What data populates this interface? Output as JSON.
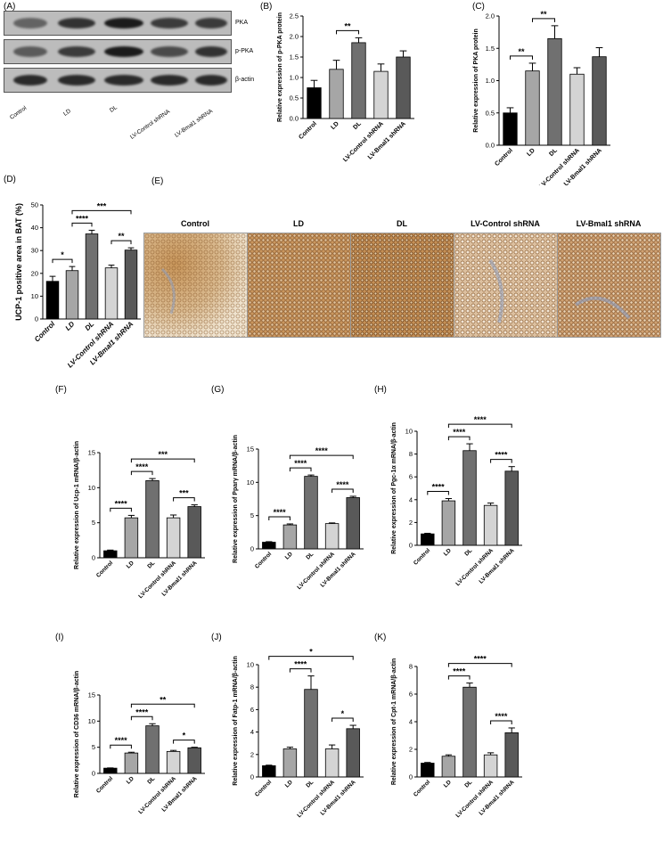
{
  "panel_labels": {
    "A": "(A)",
    "B": "(B)",
    "C": "(C)",
    "D": "(D)",
    "E": "(E)",
    "F": "(F)",
    "G": "(G)",
    "H": "(H)",
    "I": "(I)",
    "J": "(J)",
    "K": "(K)"
  },
  "blot": {
    "rows": [
      "PKA",
      "p-PKA",
      "β-actin"
    ],
    "lanes": [
      "Control",
      "LD",
      "DL",
      "LV-Control shRNA",
      "LV-Bmal1 shRNA"
    ]
  },
  "ihc": {
    "titles": [
      "Control",
      "LD",
      "DL",
      "LV-Control shRNA",
      "LV-Bmal1 shRNA"
    ]
  },
  "colors": {
    "Control": "#000000",
    "LD": "#a6a6a6",
    "DL": "#707070",
    "LV-Control shRNA": "#d4d4d4",
    "LV-Bmal1 shRNA": "#595959",
    "tissue": "#b5834a",
    "stain_blue": "#8aa0c8"
  },
  "chart_data": [
    {
      "id": "B",
      "type": "bar",
      "categories": [
        "Control",
        "LD",
        "DL",
        "LV-Control shRNA",
        "LV-Bmal1 shRNA"
      ],
      "values": [
        0.75,
        1.2,
        1.85,
        1.15,
        1.5
      ],
      "errors": [
        0.18,
        0.22,
        0.12,
        0.18,
        0.15
      ],
      "ylabel": "Relative expression of p-PKA protein",
      "ylim": [
        0,
        2.5
      ],
      "yticks": [
        "0.0",
        "0.5",
        "1.0",
        "1.5",
        "2.0",
        "2.5"
      ],
      "sig": [
        {
          "from": 1,
          "to": 2,
          "label": "**"
        }
      ]
    },
    {
      "id": "C",
      "type": "bar",
      "categories": [
        "Control",
        "LD",
        "DL",
        "LV-Control shRNA",
        "LV-Bmal1 shRNA"
      ],
      "values": [
        0.5,
        1.15,
        1.65,
        1.1,
        1.37
      ],
      "errors": [
        0.08,
        0.12,
        0.2,
        0.1,
        0.14
      ],
      "ylabel": "Relative expression of PKA protein",
      "ylim": [
        0,
        2.0
      ],
      "yticks": [
        "0.0",
        "0.5",
        "1.0",
        "1.5",
        "2.0"
      ],
      "sig": [
        {
          "from": 0,
          "to": 1,
          "label": "**"
        },
        {
          "from": 1,
          "to": 2,
          "label": "**"
        }
      ]
    },
    {
      "id": "D",
      "type": "bar",
      "categories": [
        "Control",
        "LD",
        "DL",
        "LV-Control shRNA",
        "LV-Bmal1 shRNA"
      ],
      "values": [
        16.5,
        21.2,
        37.3,
        22.4,
        30.2
      ],
      "errors": [
        2.2,
        1.8,
        1.6,
        1.2,
        1.0
      ],
      "ylabel": "UCP-1 positive area in BAT (%)",
      "ylim": [
        0,
        50
      ],
      "yticks": [
        "0",
        "10",
        "20",
        "30",
        "40",
        "50"
      ],
      "sig": [
        {
          "from": 0,
          "to": 1,
          "label": "*"
        },
        {
          "from": 1,
          "to": 2,
          "label": "****"
        },
        {
          "from": 1,
          "to": 4,
          "label": "***"
        },
        {
          "from": 3,
          "to": 4,
          "label": "**"
        }
      ]
    },
    {
      "id": "F",
      "type": "bar",
      "categories": [
        "Control",
        "LD",
        "DL",
        "LV-Control shRNA",
        "LV-Bmal1 shRNA"
      ],
      "values": [
        1.0,
        5.7,
        11.0,
        5.7,
        7.3
      ],
      "errors": [
        0.1,
        0.35,
        0.3,
        0.4,
        0.25
      ],
      "ylabel": "Relative expression of Ucp-1 mRNA/β-actin",
      "ylim": [
        0,
        15
      ],
      "yticks": [
        "0",
        "5",
        "10",
        "15"
      ],
      "sig": [
        {
          "from": 0,
          "to": 1,
          "label": "****"
        },
        {
          "from": 1,
          "to": 2,
          "label": "****"
        },
        {
          "from": 1,
          "to": 4,
          "label": "***"
        },
        {
          "from": 3,
          "to": 4,
          "label": "***"
        }
      ]
    },
    {
      "id": "G",
      "type": "bar",
      "categories": [
        "Control",
        "LD",
        "DL",
        "LV-Control shRNA",
        "LV-Bmal1 shRNA"
      ],
      "values": [
        1.0,
        3.6,
        10.9,
        3.8,
        7.7
      ],
      "errors": [
        0.08,
        0.15,
        0.2,
        0.1,
        0.2
      ],
      "ylabel": "Relative expression of Pparγ mRNA/β-actin",
      "ylim": [
        0,
        15
      ],
      "yticks": [
        "0",
        "5",
        "10",
        "15"
      ],
      "sig": [
        {
          "from": 0,
          "to": 1,
          "label": "****"
        },
        {
          "from": 1,
          "to": 2,
          "label": "****"
        },
        {
          "from": 1,
          "to": 4,
          "label": "****"
        },
        {
          "from": 3,
          "to": 4,
          "label": "****"
        }
      ]
    },
    {
      "id": "H",
      "type": "bar",
      "categories": [
        "Control",
        "LD",
        "DL",
        "LV-Control shRNA",
        "LV-Bmal1 shRNA"
      ],
      "values": [
        1.0,
        3.9,
        8.3,
        3.5,
        6.5
      ],
      "errors": [
        0.05,
        0.2,
        0.6,
        0.2,
        0.4
      ],
      "ylabel": "Relative expression of Pgc-1α mRNA/β-actin",
      "ylim": [
        0,
        10
      ],
      "yticks": [
        "0",
        "2",
        "4",
        "6",
        "8",
        "10"
      ],
      "sig": [
        {
          "from": 0,
          "to": 1,
          "label": "****"
        },
        {
          "from": 1,
          "to": 2,
          "label": "****"
        },
        {
          "from": 1,
          "to": 4,
          "label": "****"
        },
        {
          "from": 3,
          "to": 4,
          "label": "****"
        }
      ]
    },
    {
      "id": "I",
      "type": "bar",
      "categories": [
        "Control",
        "LD",
        "DL",
        "LV-Control shRNA",
        "LV-Bmal1 shRNA"
      ],
      "values": [
        1.0,
        3.9,
        9.1,
        4.2,
        4.9
      ],
      "errors": [
        0.05,
        0.15,
        0.4,
        0.2,
        0.1
      ],
      "ylabel": "Relative expression of CD36 mRNA/β-actin",
      "ylim": [
        0,
        15
      ],
      "yticks": [
        "0",
        "5",
        "10",
        "15"
      ],
      "sig": [
        {
          "from": 0,
          "to": 1,
          "label": "****"
        },
        {
          "from": 1,
          "to": 2,
          "label": "****"
        },
        {
          "from": 1,
          "to": 4,
          "label": "**"
        },
        {
          "from": 3,
          "to": 4,
          "label": "*"
        }
      ]
    },
    {
      "id": "J",
      "type": "bar",
      "categories": [
        "Control",
        "LD",
        "DL",
        "LV-Control shRNA",
        "LV-Bmal1 shRNA"
      ],
      "values": [
        1.0,
        2.5,
        7.8,
        2.5,
        4.3
      ],
      "errors": [
        0.05,
        0.15,
        1.2,
        0.35,
        0.3
      ],
      "ylabel": "Relative expression of Fatp-1 mRNA/β-actin",
      "ylim": [
        0,
        10
      ],
      "yticks": [
        "0",
        "2",
        "4",
        "6",
        "8",
        "10"
      ],
      "sig": [
        {
          "from": 1,
          "to": 2,
          "label": "****"
        },
        {
          "from": 0,
          "to": 4,
          "label": "*"
        },
        {
          "from": 3,
          "to": 4,
          "label": "*"
        }
      ]
    },
    {
      "id": "K",
      "type": "bar",
      "categories": [
        "Control",
        "LD",
        "DL",
        "LV-Control shRNA",
        "LV-Bmal1 shRNA"
      ],
      "values": [
        1.0,
        1.5,
        6.5,
        1.6,
        3.2
      ],
      "errors": [
        0.05,
        0.1,
        0.3,
        0.15,
        0.35
      ],
      "ylabel": "Relative expression of Cpt-1 mRNA/β-actin",
      "ylim": [
        0,
        8
      ],
      "yticks": [
        "0",
        "2",
        "4",
        "6",
        "8"
      ],
      "sig": [
        {
          "from": 1,
          "to": 2,
          "label": "****"
        },
        {
          "from": 1,
          "to": 4,
          "label": "****"
        },
        {
          "from": 3,
          "to": 4,
          "label": "****"
        }
      ]
    }
  ]
}
